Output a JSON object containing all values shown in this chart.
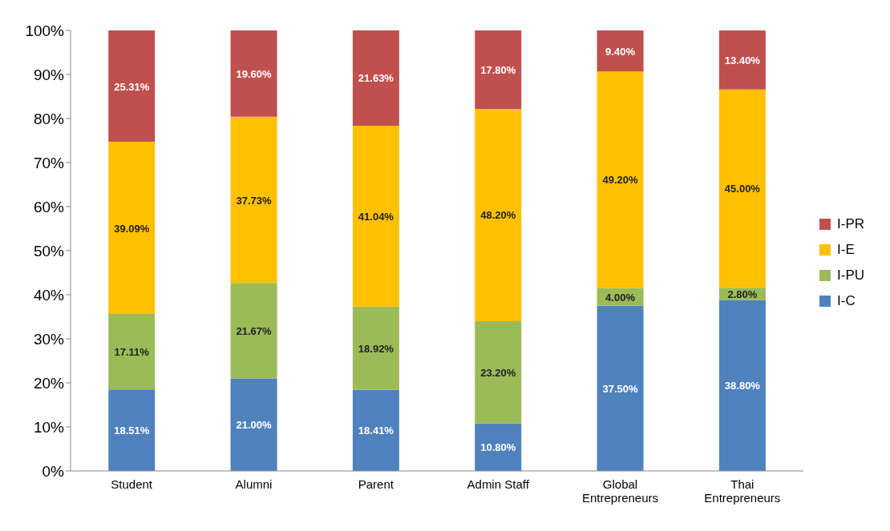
{
  "chart_data": {
    "type": "bar",
    "stacked": true,
    "categories": [
      "Student",
      "Alumni",
      "Parent",
      "Admin Staff",
      "Global Entrepreneurs",
      "Thai Entrepreneurs"
    ],
    "series": [
      {
        "name": "I-C",
        "color": "#4f81bd",
        "values": [
          18.51,
          21.0,
          18.41,
          10.8,
          37.5,
          38.8
        ],
        "value_labels": [
          "18.51%",
          "21.00%",
          "18.41%",
          "10.80%",
          "37.50%",
          "38.80%"
        ]
      },
      {
        "name": "I-PU",
        "color": "#9bbb59",
        "values": [
          17.11,
          21.67,
          18.92,
          23.2,
          4.0,
          2.8
        ],
        "value_labels": [
          "17.11%",
          "21.67%",
          "18.92%",
          "23.20%",
          "4.00%",
          "2.80%"
        ]
      },
      {
        "name": "I-E",
        "color": "#ffc000",
        "values": [
          39.09,
          37.73,
          41.04,
          48.2,
          49.2,
          45.0
        ],
        "value_labels": [
          "39.09%",
          "37.73%",
          "41.04%",
          "48.20%",
          "49.20%",
          "45.00%"
        ]
      },
      {
        "name": "I-PR",
        "color": "#c0504d",
        "values": [
          25.31,
          19.6,
          21.63,
          17.8,
          9.4,
          13.4
        ],
        "value_labels": [
          "25.31%",
          "19.60%",
          "21.63%",
          "17.80%",
          "9.40%",
          "13.40%"
        ]
      }
    ],
    "ylim": [
      0,
      100
    ],
    "yticks": [
      {
        "value": 0,
        "label": "0%"
      },
      {
        "value": 10,
        "label": "10%"
      },
      {
        "value": 20,
        "label": "20%"
      },
      {
        "value": 30,
        "label": "30%"
      },
      {
        "value": 40,
        "label": "40%"
      },
      {
        "value": 50,
        "label": "50%"
      },
      {
        "value": 60,
        "label": "60%"
      },
      {
        "value": 70,
        "label": "70%"
      },
      {
        "value": 80,
        "label": "80%"
      },
      {
        "value": 90,
        "label": "90%"
      },
      {
        "value": 100,
        "label": "100%"
      }
    ],
    "grid": false,
    "legend": "right"
  }
}
